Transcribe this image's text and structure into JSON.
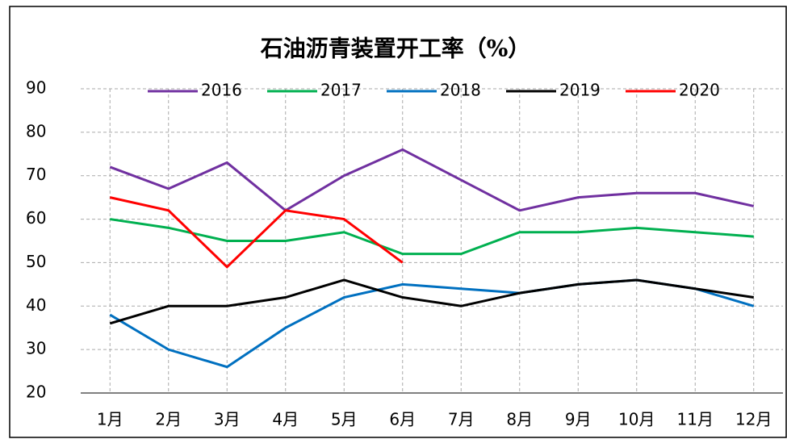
{
  "chart_data": {
    "type": "line",
    "title": "石油沥青装置开工率（%）",
    "categories": [
      "1月",
      "2月",
      "3月",
      "4月",
      "5月",
      "6月",
      "7月",
      "8月",
      "9月",
      "10月",
      "11月",
      "12月"
    ],
    "series": [
      {
        "name": "2016",
        "color": "#7030a0",
        "values": [
          72,
          67,
          73,
          62,
          70,
          76,
          69,
          62,
          65,
          66,
          66,
          63
        ]
      },
      {
        "name": "2017",
        "color": "#00b050",
        "values": [
          60,
          58,
          55,
          55,
          57,
          52,
          52,
          57,
          57,
          58,
          57,
          56
        ]
      },
      {
        "name": "2018",
        "color": "#0070c0",
        "values": [
          38,
          30,
          26,
          35,
          42,
          45,
          44,
          43,
          45,
          46,
          44,
          40
        ]
      },
      {
        "name": "2019",
        "color": "#000000",
        "values": [
          36,
          40,
          40,
          42,
          46,
          42,
          40,
          43,
          45,
          46,
          44,
          42
        ]
      },
      {
        "name": "2020",
        "color": "#ff0000",
        "values": [
          65,
          62,
          49,
          62,
          60,
          50,
          null,
          null,
          null,
          null,
          null,
          null
        ]
      }
    ],
    "ylim": [
      20,
      90
    ],
    "yticks": [
      20,
      30,
      40,
      50,
      60,
      70,
      80,
      90
    ],
    "grid": true
  }
}
